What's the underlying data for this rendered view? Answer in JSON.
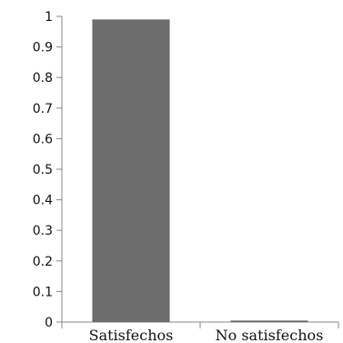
{
  "chart_data": {
    "type": "bar",
    "categories": [
      "Satisfechos",
      "No satisfechos"
    ],
    "values": [
      0.99,
      0.005
    ],
    "title": "",
    "xlabel": "",
    "ylabel": "",
    "ylim": [
      0,
      1
    ],
    "yticks": [
      "0",
      "0.1",
      "0.2",
      "0.3",
      "0.4",
      "0.5",
      "0.6",
      "0.7",
      "0.8",
      "0.9",
      "1"
    ],
    "grid": false,
    "legend": "none",
    "bar_color": "#6d6d6d"
  }
}
